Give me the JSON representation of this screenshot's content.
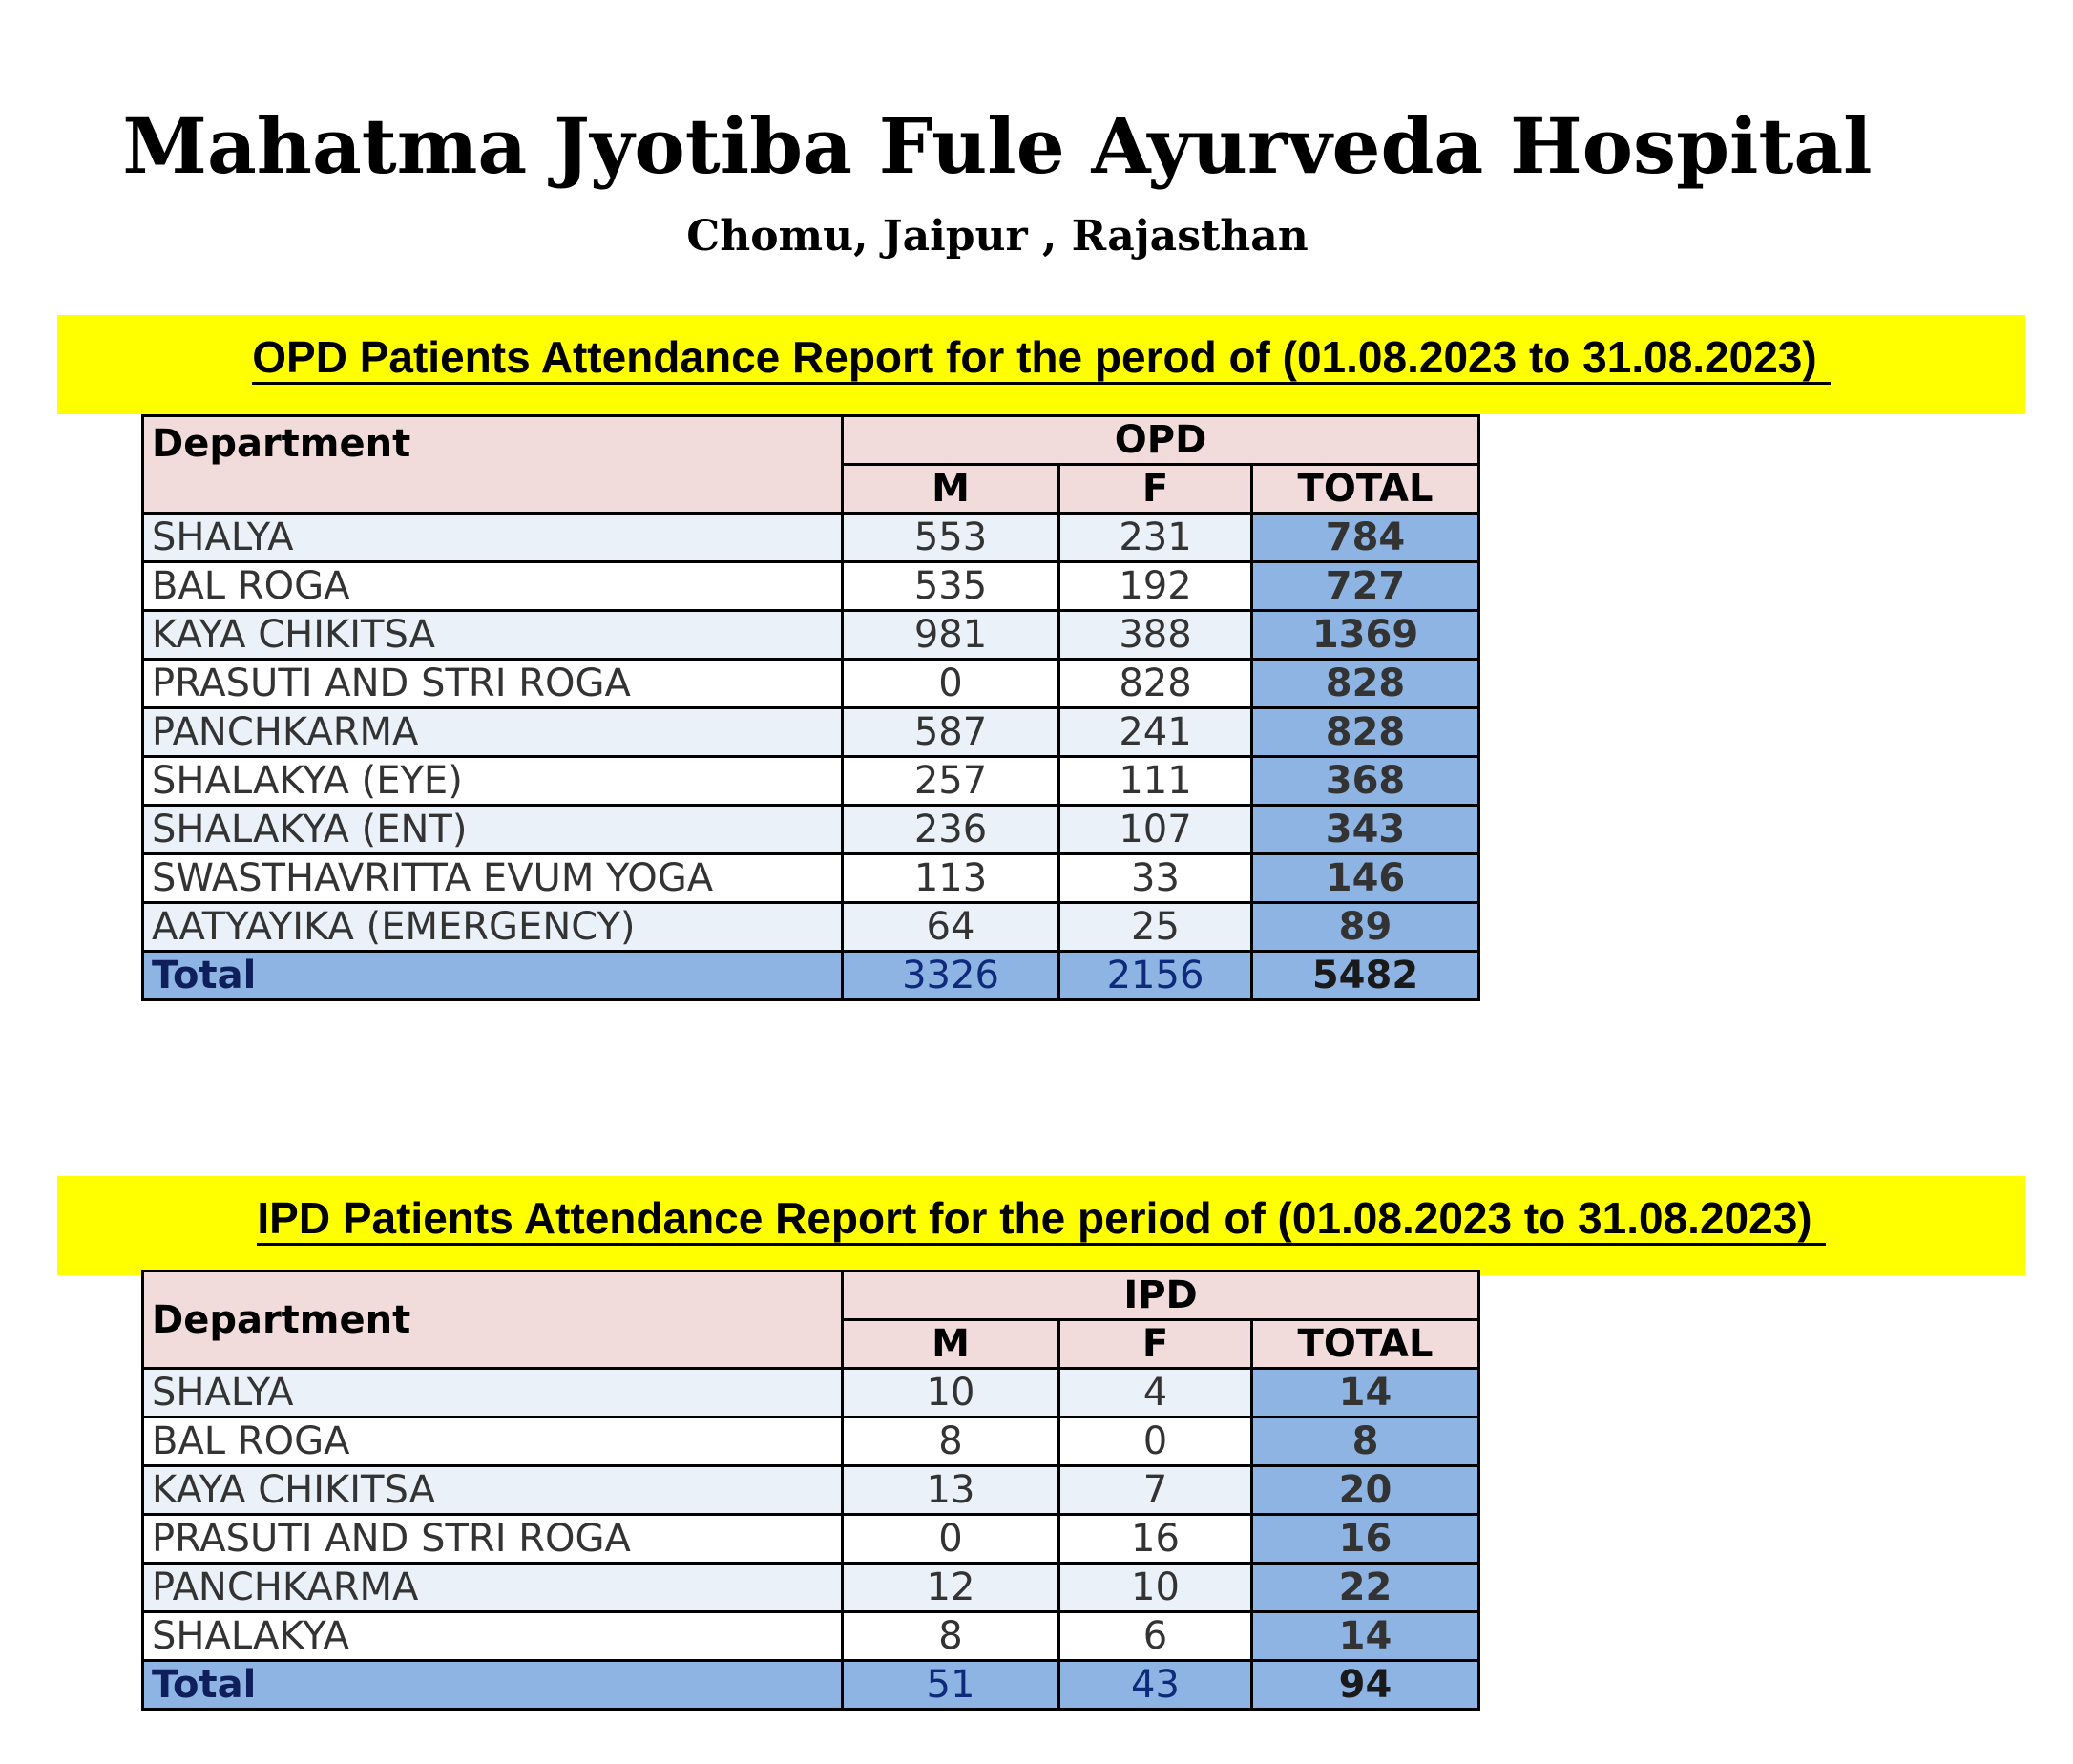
{
  "header": {
    "title": "Mahatma Jyotiba Fule Ayurveda Hospital",
    "subtitle": "Chomu, Jaipur , Rajasthan"
  },
  "opd": {
    "banner": "OPD Patients Attendance Report for the perod of (01.08.2023 to 31.08.2023)",
    "dept_header": "Department",
    "group_header": "OPD",
    "m_header": "M",
    "f_header": "F",
    "total_header": "TOTAL",
    "rows": [
      {
        "dept": "SHALYA",
        "m": "553",
        "f": "231",
        "total": "784"
      },
      {
        "dept": "BAL ROGA",
        "m": "535",
        "f": "192",
        "total": "727"
      },
      {
        "dept": "KAYA CHIKITSA",
        "m": "981",
        "f": "388",
        "total": "1369"
      },
      {
        "dept": "PRASUTI AND STRI ROGA",
        "m": "0",
        "f": "828",
        "total": "828"
      },
      {
        "dept": "PANCHKARMA",
        "m": "587",
        "f": "241",
        "total": "828"
      },
      {
        "dept": "SHALAKYA (EYE)",
        "m": "257",
        "f": "111",
        "total": "368"
      },
      {
        "dept": "SHALAKYA (ENT)",
        "m": "236",
        "f": "107",
        "total": "343"
      },
      {
        "dept": "SWASTHAVRITTA EVUM YOGA",
        "m": "113",
        "f": "33",
        "total": "146"
      },
      {
        "dept": "AATYAYIKA (EMERGENCY)",
        "m": "64",
        "f": "25",
        "total": "89"
      }
    ],
    "totals": {
      "label": "Total",
      "m": "3326",
      "f": "2156",
      "total": "5482"
    }
  },
  "ipd": {
    "banner": "IPD Patients  Attendance Report for the period of (01.08.2023 to 31.08.2023)",
    "dept_header": "Department",
    "group_header": "IPD",
    "m_header": "M",
    "f_header": "F",
    "total_header": "TOTAL",
    "rows": [
      {
        "dept": "SHALYA",
        "m": "10",
        "f": "4",
        "total": "14"
      },
      {
        "dept": "BAL ROGA",
        "m": "8",
        "f": "0",
        "total": "8"
      },
      {
        "dept": "KAYA CHIKITSA",
        "m": "13",
        "f": "7",
        "total": "20"
      },
      {
        "dept": "PRASUTI AND STRI ROGA",
        "m": "0",
        "f": "16",
        "total": "16"
      },
      {
        "dept": "PANCHKARMA",
        "m": "12",
        "f": "10",
        "total": "22"
      },
      {
        "dept": "SHALAKYA",
        "m": "8",
        "f": "6",
        "total": "14"
      }
    ],
    "totals": {
      "label": "Total",
      "m": "51",
      "f": "43",
      "total": "94"
    }
  }
}
